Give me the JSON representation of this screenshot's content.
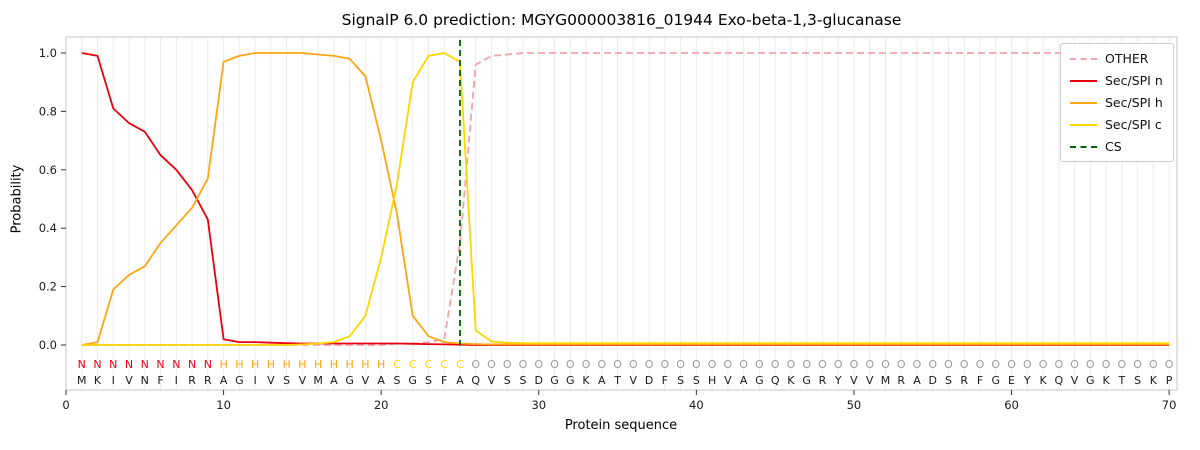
{
  "chart_data": {
    "type": "line",
    "title": "SignalP 6.0 prediction: MGYG000003816_01944 Exo-beta-1,3-glucanase",
    "xlabel": "Protein sequence",
    "ylabel": "Probability",
    "xlim": [
      0,
      70.5
    ],
    "ylim": [
      0,
      1.0
    ],
    "grid": "vertical-per-residue",
    "legend_position": "upper right",
    "x_ticks": [
      0,
      10,
      20,
      30,
      40,
      50,
      60,
      70
    ],
    "y_ticks": [
      0.0,
      0.2,
      0.4,
      0.6,
      0.8,
      1.0
    ],
    "positions": [
      1,
      2,
      3,
      4,
      5,
      6,
      7,
      8,
      9,
      10,
      11,
      12,
      13,
      14,
      15,
      16,
      17,
      18,
      19,
      20,
      21,
      22,
      23,
      24,
      25,
      26,
      27,
      28,
      29,
      30,
      31,
      32,
      33,
      34,
      35,
      36,
      37,
      38,
      39,
      40,
      41,
      42,
      43,
      44,
      45,
      46,
      47,
      48,
      49,
      50,
      51,
      52,
      53,
      54,
      55,
      56,
      57,
      58,
      59,
      60,
      61,
      62,
      63,
      64,
      65,
      66,
      67,
      68,
      69,
      70
    ],
    "series": [
      {
        "name": "OTHER",
        "color": "#f2a2ab",
        "dash": true,
        "values": [
          0,
          0,
          0,
          0,
          0,
          0,
          0,
          0,
          0,
          0,
          0,
          0,
          0,
          0,
          0,
          0,
          0,
          0,
          0,
          0,
          0.005,
          0.005,
          0.01,
          0.02,
          0.35,
          0.96,
          0.99,
          0.995,
          1,
          1,
          1,
          1,
          1,
          1,
          1,
          1,
          1,
          1,
          1,
          1,
          1,
          1,
          1,
          1,
          1,
          1,
          1,
          1,
          1,
          1,
          1,
          1,
          1,
          1,
          1,
          1,
          1,
          1,
          1,
          1,
          1,
          1,
          1,
          1,
          1,
          1,
          1,
          1,
          1,
          1
        ]
      },
      {
        "name": "Sec/SPI n",
        "color": "#e8000b",
        "dash": false,
        "values": [
          1,
          0.99,
          0.81,
          0.76,
          0.73,
          0.65,
          0.6,
          0.53,
          0.43,
          0.02,
          0.01,
          0.01,
          0.008,
          0.006,
          0.005,
          0.005,
          0.005,
          0.005,
          0.005,
          0.005,
          0.005,
          0.004,
          0.003,
          0.002,
          0.001,
          0,
          0,
          0,
          0,
          0,
          0,
          0,
          0,
          0,
          0,
          0,
          0,
          0,
          0,
          0,
          0,
          0,
          0,
          0,
          0,
          0,
          0,
          0,
          0,
          0,
          0,
          0,
          0,
          0,
          0,
          0,
          0,
          0,
          0,
          0,
          0,
          0,
          0,
          0,
          0,
          0,
          0,
          0,
          0,
          0
        ]
      },
      {
        "name": "Sec/SPI h",
        "color": "#ffa412",
        "dash": false,
        "values": [
          0,
          0.01,
          0.19,
          0.24,
          0.27,
          0.35,
          0.41,
          0.47,
          0.57,
          0.97,
          0.99,
          1,
          1,
          1,
          1,
          0.995,
          0.99,
          0.98,
          0.92,
          0.7,
          0.45,
          0.1,
          0.03,
          0.01,
          0.005,
          0.003,
          0.002,
          0.002,
          0.002,
          0.002,
          0.002,
          0.002,
          0.002,
          0.002,
          0.002,
          0.002,
          0.002,
          0.002,
          0.002,
          0.002,
          0.002,
          0.002,
          0.002,
          0.002,
          0.002,
          0.002,
          0.002,
          0.002,
          0.002,
          0.002,
          0.002,
          0.002,
          0.002,
          0.002,
          0.002,
          0.002,
          0.002,
          0.002,
          0.002,
          0.002,
          0.002,
          0.002,
          0.002,
          0.002,
          0.002,
          0.002,
          0.002,
          0.002,
          0.002,
          0.002
        ]
      },
      {
        "name": "Sec/SPI c",
        "color": "#ffd500",
        "dash": false,
        "values": [
          0,
          0,
          0,
          0,
          0,
          0,
          0,
          0,
          0,
          0,
          0,
          0,
          0,
          0,
          0.002,
          0.005,
          0.01,
          0.03,
          0.1,
          0.3,
          0.55,
          0.9,
          0.99,
          1,
          0.97,
          0.05,
          0.012,
          0.008,
          0.006,
          0.006,
          0.006,
          0.006,
          0.006,
          0.006,
          0.006,
          0.006,
          0.006,
          0.006,
          0.006,
          0.006,
          0.006,
          0.006,
          0.006,
          0.006,
          0.006,
          0.006,
          0.006,
          0.006,
          0.006,
          0.006,
          0.006,
          0.006,
          0.006,
          0.006,
          0.006,
          0.006,
          0.006,
          0.006,
          0.006,
          0.006,
          0.006,
          0.006,
          0.006,
          0.006,
          0.006,
          0.006,
          0.006,
          0.006,
          0.006,
          0.006
        ]
      }
    ],
    "cs_line": {
      "name": "CS",
      "position": 25,
      "color": "#006400",
      "dash": true
    }
  },
  "annotation": {
    "region_labels": "NNNNNNNNNHHHHHHHHHHHCCCCCOOOOOOOOOOOOOOOOOOOOOOOOOOOOOOOOOOOOOOOOOOOOO",
    "sequence": "MKIVNFIRRAGIVSVMAGVASGSFAQVSSDGGKATVDFSSHVAGQKGRYVVMRADSRFGEYKQVGKTSKP",
    "region_colors": {
      "N": "#e8000b",
      "H": "#ffa412",
      "C": "#ffd500",
      "O": "#9a9a9a"
    },
    "sequence_color": "#1a1a1a"
  }
}
